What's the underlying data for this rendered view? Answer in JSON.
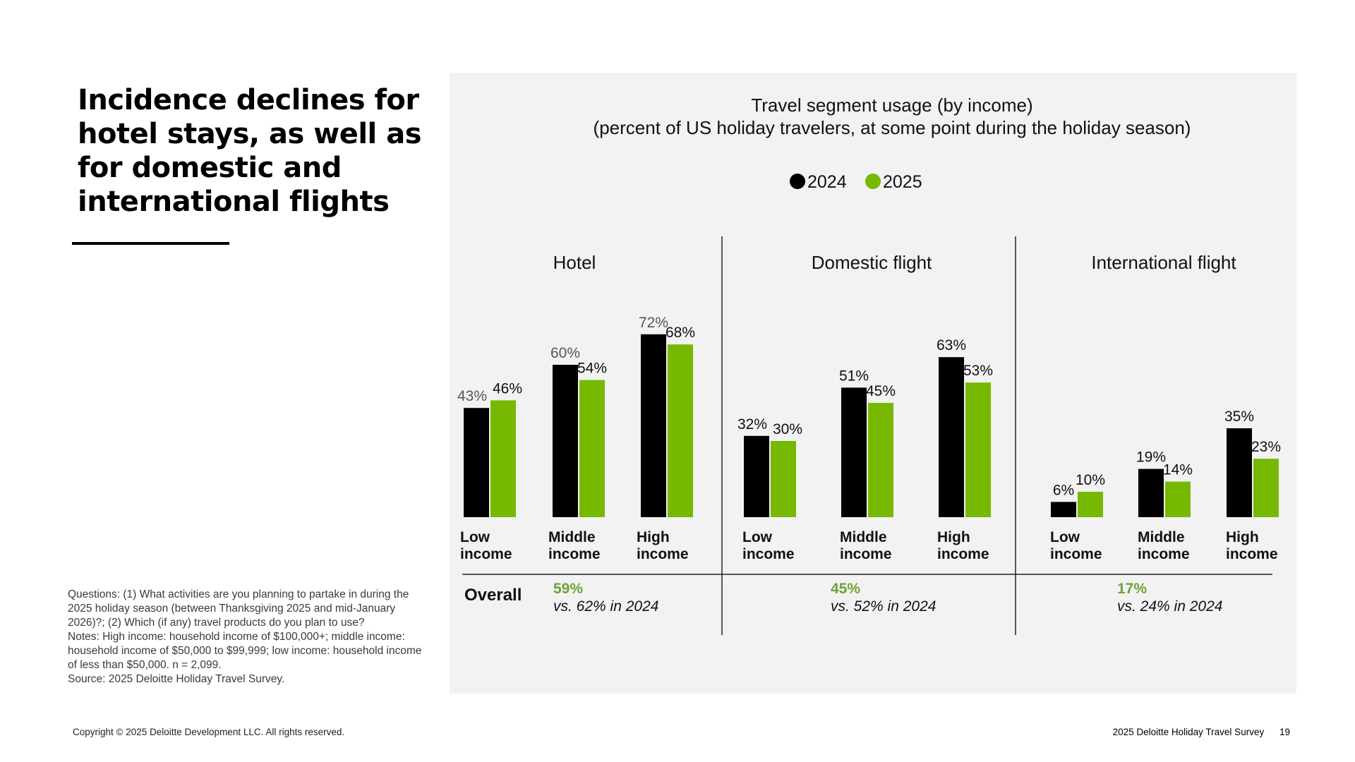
{
  "slide": {
    "headline_lines": [
      "Incidence declines for",
      "hotel stays, as well as",
      "for domestic and",
      "international flights"
    ],
    "notes_lines": [
      "Questions: (1) What activities are you planning to partake in during the 2025 holiday season (between Thanksgiving 2025 and mid-January 2026)?; (2) Which (if any) travel products do you plan to use?",
      "Notes: High income: household income of $100,000+; middle income: household income of $50,000 to $99,999; low income: household income of less than $50,000. n = 2,099.",
      "Source: 2025 Deloitte Holiday Travel Survey."
    ],
    "footer": {
      "copyright": "Copyright © 2025 Deloitte Development LLC. All rights reserved.",
      "survey_name": "2025 Deloitte Holiday Travel Survey",
      "page_number": "19"
    }
  },
  "chart_data": {
    "type": "bar",
    "title": "Travel segment usage (by income)",
    "subtitle": "(percent of US holiday travelers, at some point during the holiday season)",
    "ylim": [
      0,
      100
    ],
    "grid": false,
    "legend_placement": "top-center",
    "colors": {
      "2024": "#000000",
      "2025": "#76b900",
      "overall_value": "#6ea339",
      "year_2024_label": "#555555"
    },
    "series_names": [
      "2024",
      "2025"
    ],
    "overall_label": "Overall",
    "panels": [
      {
        "title": "Hotel",
        "categories": [
          [
            "Low",
            "income"
          ],
          [
            "Middle",
            "income"
          ],
          [
            "High",
            "income"
          ]
        ],
        "series": [
          {
            "name": "2024",
            "values": [
              43,
              60,
              72
            ]
          },
          {
            "name": "2025",
            "values": [
              46,
              54,
              68
            ]
          }
        ],
        "overall": {
          "value": "59%",
          "comparison": "vs. 62% in 2024"
        }
      },
      {
        "title": "Domestic flight",
        "categories": [
          [
            "Low",
            "income"
          ],
          [
            "Middle",
            "income"
          ],
          [
            "High",
            "income"
          ]
        ],
        "series": [
          {
            "name": "2024",
            "values": [
              32,
              51,
              63
            ]
          },
          {
            "name": "2025",
            "values": [
              30,
              45,
              53
            ]
          }
        ],
        "overall": {
          "value": "45%",
          "comparison": "vs. 52% in 2024"
        }
      },
      {
        "title": "International flight",
        "categories": [
          [
            "Low",
            "income"
          ],
          [
            "Middle",
            "income"
          ],
          [
            "High",
            "income"
          ]
        ],
        "series": [
          {
            "name": "2024",
            "values": [
              6,
              19,
              35
            ]
          },
          {
            "name": "2025",
            "values": [
              10,
              14,
              23
            ]
          }
        ],
        "overall": {
          "value": "17%",
          "comparison": "vs. 24% in 2024"
        }
      }
    ]
  }
}
